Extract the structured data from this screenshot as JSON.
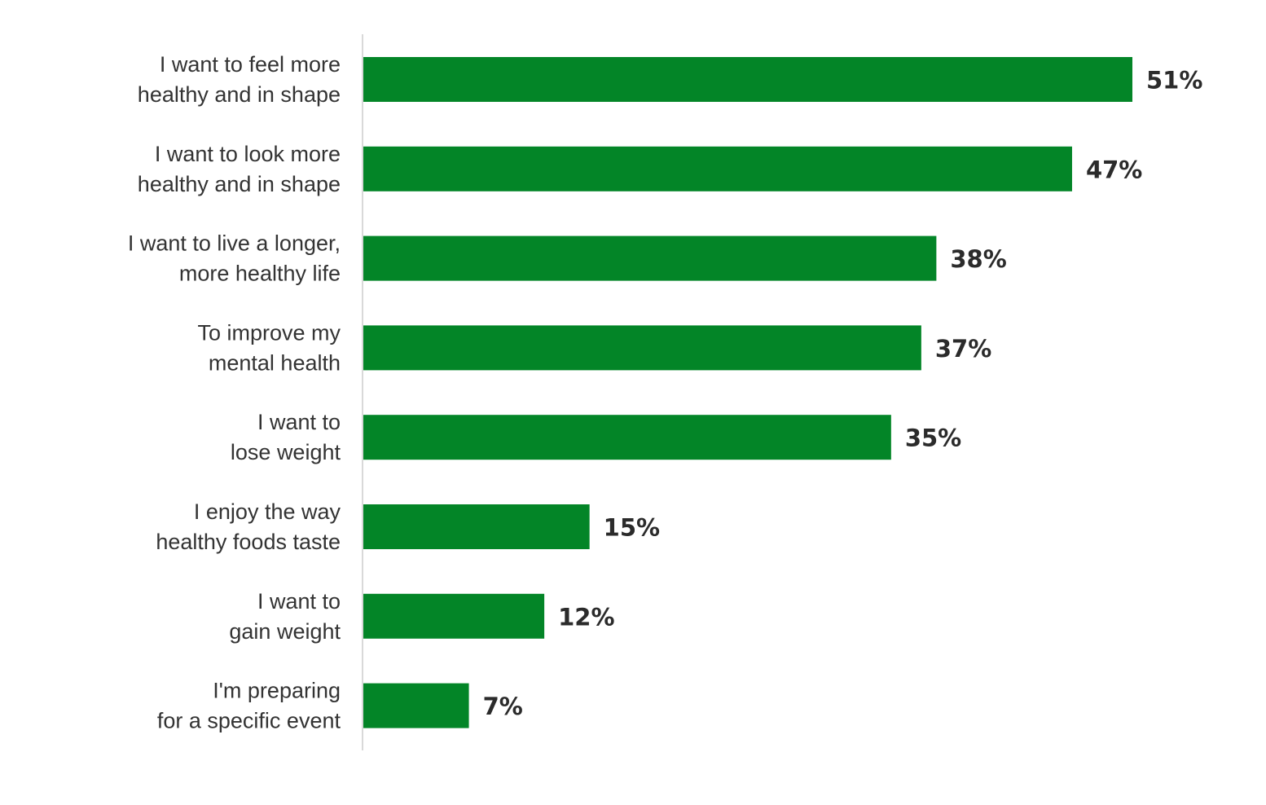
{
  "chart_data": {
    "type": "bar",
    "orientation": "horizontal",
    "categories": [
      [
        "I want to feel more",
        "healthy and in shape"
      ],
      [
        "I want to look more",
        "healthy and in shape"
      ],
      [
        "I want to live a longer,",
        "more healthy life"
      ],
      [
        "To improve my",
        "mental health"
      ],
      [
        "I want to",
        "lose weight"
      ],
      [
        "I enjoy the way",
        "healthy foods taste"
      ],
      [
        "I want to",
        "gain weight"
      ],
      [
        "I'm preparing",
        "for a specific event"
      ]
    ],
    "values": [
      51,
      47,
      38,
      37,
      35,
      15,
      12,
      7
    ],
    "value_labels": [
      "51%",
      "47%",
      "38%",
      "37%",
      "35%",
      "15%",
      "12%",
      "7%"
    ],
    "unit": "%",
    "title": "",
    "xlabel": "",
    "ylabel": "",
    "grid": false,
    "legend": "none",
    "colors": {
      "bar": "#038527",
      "axis": "#d9d9d9",
      "label": "#333333",
      "value": "#2b2b2b"
    }
  }
}
